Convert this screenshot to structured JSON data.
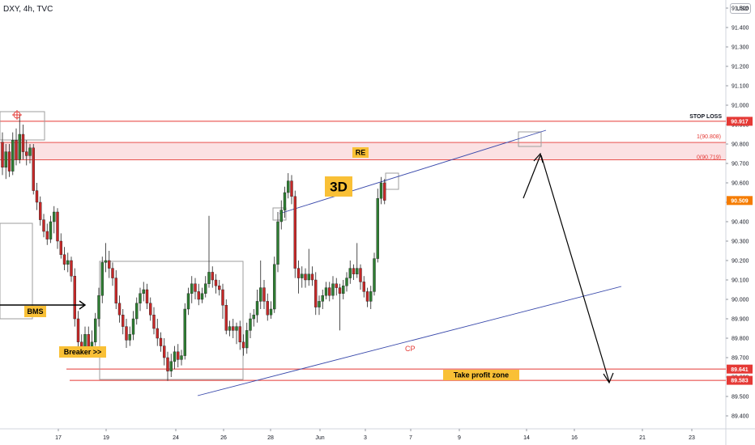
{
  "header": {
    "symbol_line": "DXY, 4h, TVC"
  },
  "currency": "USD",
  "colors": {
    "up": "#26a69a",
    "down": "#ef5350",
    "upBody": "#2e7d32",
    "downBody": "#c62828",
    "red": "#e53935",
    "zone": "#f8c9cc",
    "trend": "#3949ab",
    "box": "#9e9e9e",
    "label": "#f9c036"
  },
  "chart_data": {
    "type": "candlestick",
    "title": "DXY, 4h, TVC",
    "ylim": [
      89.31,
      91.69
    ],
    "y_ticks": [
      "91.600",
      "91.500",
      "91.400",
      "91.300",
      "91.200",
      "91.100",
      "91.000",
      "90.900",
      "90.800",
      "90.700",
      "90.600",
      "90.500",
      "90.400",
      "90.300",
      "90.200",
      "90.100",
      "90.000",
      "89.900",
      "89.800",
      "89.700",
      "89.600",
      "89.500",
      "89.400"
    ],
    "x_ticks": [
      "17",
      "19",
      "24",
      "26",
      "28",
      "Jun",
      "3",
      "7",
      "9",
      "14",
      "16",
      "21",
      "23"
    ],
    "price_labels": [
      {
        "text": "90.917",
        "value": 90.917
      },
      {
        "text": "90.509",
        "value": 90.509
      },
      {
        "text": "89.641",
        "value": 89.641
      },
      {
        "text": "89.583",
        "value": 89.583
      }
    ],
    "annotations": {
      "stop_loss": "STOP LOSS",
      "fib1": "1(90.808)",
      "fib0": "0(90.719)",
      "re": "RE",
      "three_d": "3D",
      "bms": "BMS",
      "breaker": "Breaker >>",
      "cp": "CP",
      "take_profit": "Take profit zone"
    },
    "levels": {
      "stop_loss": 90.917,
      "fib1": 90.808,
      "fib0": 90.719,
      "tp_upper": 89.641,
      "tp_lower": 89.583
    },
    "candles": [
      [
        90.81,
        90.68,
        90.86,
        90.64
      ],
      [
        90.68,
        90.76,
        90.8,
        90.62
      ],
      [
        90.76,
        90.66,
        90.8,
        90.63
      ],
      [
        90.66,
        90.82,
        90.86,
        90.64
      ],
      [
        90.82,
        90.72,
        90.88,
        90.69
      ],
      [
        90.72,
        90.85,
        90.95,
        90.7
      ],
      [
        90.85,
        90.76,
        90.9,
        90.72
      ],
      [
        90.76,
        90.74,
        90.82,
        90.69
      ],
      [
        90.74,
        90.78,
        90.8,
        90.7
      ],
      [
        90.78,
        90.56,
        90.8,
        90.54
      ],
      [
        90.56,
        90.5,
        90.6,
        90.46
      ],
      [
        90.5,
        90.41,
        90.53,
        90.38
      ],
      [
        90.41,
        90.35,
        90.44,
        90.32
      ],
      [
        90.35,
        90.31,
        90.39,
        90.28
      ],
      [
        90.31,
        90.4,
        90.43,
        90.29
      ],
      [
        90.4,
        90.45,
        90.48,
        90.34
      ],
      [
        90.45,
        90.3,
        90.47,
        90.26
      ],
      [
        90.3,
        90.23,
        90.34,
        90.21
      ],
      [
        90.23,
        90.18,
        90.27,
        90.15
      ],
      [
        90.18,
        90.2,
        90.24,
        90.14
      ],
      [
        90.2,
        90.12,
        90.22,
        90.09
      ],
      [
        90.12,
        89.9,
        90.16,
        89.86
      ],
      [
        89.9,
        89.78,
        89.94,
        89.74
      ],
      [
        89.78,
        89.75,
        89.82,
        89.7
      ],
      [
        89.75,
        89.82,
        89.86,
        89.71
      ],
      [
        89.82,
        89.74,
        89.86,
        89.7
      ],
      [
        89.74,
        89.78,
        89.84,
        89.71
      ],
      [
        89.78,
        89.9,
        89.93,
        89.76
      ],
      [
        89.9,
        90.02,
        90.06,
        89.86
      ],
      [
        90.02,
        90.19,
        90.22,
        89.98
      ],
      [
        90.19,
        90.2,
        90.29,
        90.14
      ],
      [
        90.2,
        90.16,
        90.25,
        90.11
      ],
      [
        90.16,
        90.11,
        90.19,
        90.07
      ],
      [
        90.11,
        89.98,
        90.15,
        89.95
      ],
      [
        89.98,
        89.92,
        90.02,
        89.88
      ],
      [
        89.92,
        89.86,
        89.95,
        89.82
      ],
      [
        89.86,
        89.79,
        89.9,
        89.75
      ],
      [
        89.79,
        89.82,
        89.86,
        89.76
      ],
      [
        89.82,
        89.9,
        89.94,
        89.79
      ],
      [
        89.9,
        89.98,
        90.01,
        89.87
      ],
      [
        89.98,
        90.03,
        90.06,
        89.94
      ],
      [
        90.03,
        90.05,
        90.09,
        89.99
      ],
      [
        90.05,
        89.98,
        90.08,
        89.95
      ],
      [
        89.98,
        89.92,
        90.01,
        89.89
      ],
      [
        89.92,
        89.85,
        89.96,
        89.82
      ],
      [
        89.85,
        89.8,
        89.9,
        89.76
      ],
      [
        89.8,
        89.76,
        89.83,
        89.73
      ],
      [
        89.76,
        89.7,
        89.8,
        89.66
      ],
      [
        89.7,
        89.63,
        89.73,
        89.58
      ],
      [
        89.63,
        89.68,
        89.72,
        89.6
      ],
      [
        89.68,
        89.73,
        89.76,
        89.64
      ],
      [
        89.73,
        89.69,
        89.77,
        89.65
      ],
      [
        89.69,
        89.71,
        89.74,
        89.66
      ],
      [
        89.71,
        89.95,
        89.98,
        89.69
      ],
      [
        89.95,
        90.03,
        90.06,
        89.92
      ],
      [
        90.03,
        90.08,
        90.12,
        89.98
      ],
      [
        90.08,
        90.04,
        90.11,
        90.0
      ],
      [
        90.04,
        90.0,
        90.08,
        89.97
      ],
      [
        90.0,
        90.03,
        90.06,
        89.98
      ],
      [
        90.03,
        90.08,
        90.12,
        90.01
      ],
      [
        90.08,
        90.14,
        90.43,
        90.06
      ],
      [
        90.14,
        90.1,
        90.17,
        90.06
      ],
      [
        90.1,
        90.07,
        90.13,
        90.03
      ],
      [
        90.07,
        90.05,
        90.1,
        90.02
      ],
      [
        90.05,
        89.97,
        90.08,
        89.9
      ],
      [
        89.97,
        89.84,
        90.0,
        89.82
      ],
      [
        89.84,
        89.86,
        89.89,
        89.81
      ],
      [
        89.86,
        89.84,
        89.9,
        89.8
      ],
      [
        89.84,
        89.86,
        89.88,
        89.77
      ],
      [
        89.86,
        89.78,
        89.89,
        89.74
      ],
      [
        89.78,
        89.75,
        89.82,
        89.71
      ],
      [
        89.75,
        89.84,
        89.88,
        89.72
      ],
      [
        89.84,
        89.9,
        89.93,
        89.8
      ],
      [
        89.9,
        89.92,
        89.95,
        89.86
      ],
      [
        89.92,
        89.99,
        90.05,
        89.88
      ],
      [
        89.99,
        90.06,
        90.2,
        89.95
      ],
      [
        90.06,
        89.99,
        90.1,
        89.95
      ],
      [
        89.99,
        89.92,
        90.03,
        89.89
      ],
      [
        89.92,
        89.95,
        89.99,
        89.9
      ],
      [
        89.95,
        90.18,
        90.22,
        89.93
      ],
      [
        90.18,
        90.4,
        90.45,
        90.14
      ],
      [
        90.4,
        90.46,
        90.51,
        90.36
      ],
      [
        90.46,
        90.55,
        90.58,
        90.42
      ],
      [
        90.55,
        90.61,
        90.65,
        90.52
      ],
      [
        90.61,
        90.53,
        90.64,
        90.49
      ],
      [
        90.53,
        90.16,
        90.56,
        90.11
      ],
      [
        90.16,
        90.11,
        90.2,
        90.03
      ],
      [
        90.11,
        90.13,
        90.17,
        90.06
      ],
      [
        90.13,
        90.1,
        90.16,
        90.06
      ],
      [
        90.1,
        90.13,
        90.26,
        90.07
      ],
      [
        90.13,
        90.1,
        90.17,
        90.07
      ],
      [
        90.1,
        89.96,
        90.14,
        89.92
      ],
      [
        89.96,
        89.99,
        90.02,
        89.92
      ],
      [
        89.99,
        90.02,
        90.05,
        89.95
      ],
      [
        90.02,
        90.06,
        90.09,
        90.0
      ],
      [
        90.06,
        90.02,
        90.09,
        89.99
      ],
      [
        90.02,
        90.08,
        90.12,
        90.0
      ],
      [
        90.08,
        90.06,
        90.11,
        90.02
      ],
      [
        90.06,
        90.03,
        90.08,
        89.84
      ],
      [
        90.03,
        90.07,
        90.1,
        90.0
      ],
      [
        90.07,
        90.11,
        90.14,
        90.04
      ],
      [
        90.11,
        90.16,
        90.2,
        90.08
      ],
      [
        90.16,
        90.13,
        90.18,
        90.1
      ],
      [
        90.13,
        90.16,
        90.29,
        90.11
      ],
      [
        90.16,
        90.09,
        90.18,
        90.05
      ],
      [
        90.09,
        90.04,
        90.12,
        90.01
      ],
      [
        90.04,
        89.99,
        90.06,
        89.96
      ],
      [
        89.99,
        90.04,
        90.07,
        89.95
      ],
      [
        90.04,
        90.21,
        90.24,
        90.02
      ],
      [
        90.21,
        90.52,
        90.57,
        90.19
      ],
      [
        90.52,
        90.6,
        90.63,
        90.49
      ],
      [
        90.6,
        90.51,
        90.62,
        90.49
      ]
    ]
  }
}
